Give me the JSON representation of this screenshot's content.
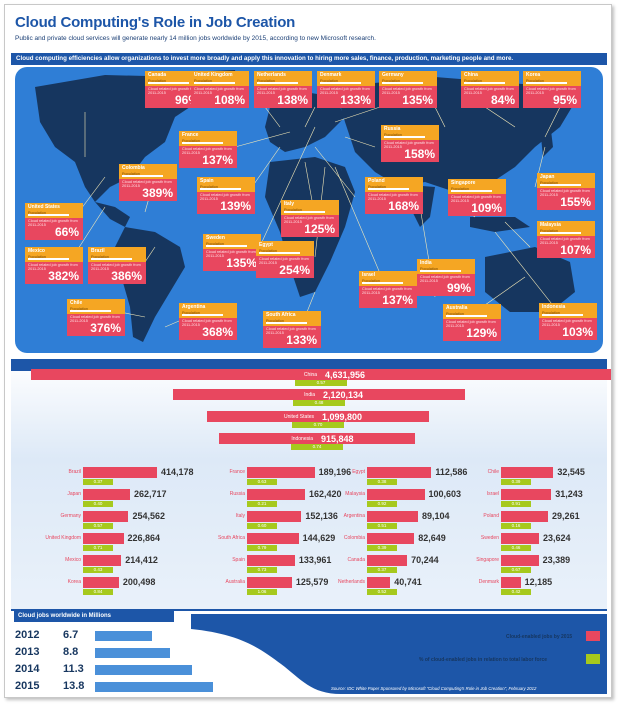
{
  "title": "Cloud Computing's Role in Job Creation",
  "subtitle": "Public and private cloud services will generate nearly 14 million jobs worldwide by 2015, according to new Microsoft research.",
  "banner": "Cloud computing efficiencies allow organizations to invest more broadly and apply this innovation to hiring more sales, finance, production, marketing people and more.",
  "card_line1": "Population",
  "card_line2": "Cloud related job growth from 2011-2015",
  "map_cards": [
    {
      "country": "Canada",
      "pct": "96%"
    },
    {
      "country": "United Kingdom",
      "pct": "108%"
    },
    {
      "country": "Netherlands",
      "pct": "138%"
    },
    {
      "country": "Denmark",
      "pct": "133%"
    },
    {
      "country": "Germany",
      "pct": "135%"
    },
    {
      "country": "China",
      "pct": "84%"
    },
    {
      "country": "Korea",
      "pct": "95%"
    },
    {
      "country": "France",
      "pct": "137%"
    },
    {
      "country": "Russia",
      "pct": "158%"
    },
    {
      "country": "Colombia",
      "pct": "389%"
    },
    {
      "country": "Spain",
      "pct": "139%"
    },
    {
      "country": "Poland",
      "pct": "168%"
    },
    {
      "country": "Singapore",
      "pct": "109%"
    },
    {
      "country": "Japan",
      "pct": "155%"
    },
    {
      "country": "United States",
      "pct": "66%"
    },
    {
      "country": "Italy",
      "pct": "125%"
    },
    {
      "country": "Malaysia",
      "pct": "107%"
    },
    {
      "country": "Mexico",
      "pct": "382%"
    },
    {
      "country": "Brazil",
      "pct": "386%"
    },
    {
      "country": "Sweden",
      "pct": "135%"
    },
    {
      "country": "Egypt",
      "pct": "254%"
    },
    {
      "country": "India",
      "pct": "99%"
    },
    {
      "country": "Israel",
      "pct": "137%"
    },
    {
      "country": "Chile",
      "pct": "376%"
    },
    {
      "country": "Argentina",
      "pct": "368%"
    },
    {
      "country": "South Africa",
      "pct": "133%"
    },
    {
      "country": "Australia",
      "pct": "129%"
    },
    {
      "country": "Indonesia",
      "pct": "103%"
    }
  ],
  "big_rows": [
    {
      "country": "China",
      "jobs": "4,631,956",
      "share": "0.57"
    },
    {
      "country": "India",
      "jobs": "2,120,134",
      "share": "0.48"
    },
    {
      "country": "United States",
      "jobs": "1,099,800",
      "share": "0.70"
    },
    {
      "country": "Indonesia",
      "jobs": "915,848",
      "share": "0.74"
    }
  ],
  "columns": [
    [
      {
        "country": "Brazil",
        "jobs": "414,178",
        "share": "0.37"
      },
      {
        "country": "Japan",
        "jobs": "262,717",
        "share": "0.40"
      },
      {
        "country": "Germany",
        "jobs": "254,562",
        "share": "0.57"
      },
      {
        "country": "United Kingdom",
        "jobs": "226,864",
        "share": "0.71"
      },
      {
        "country": "Mexico",
        "jobs": "214,412",
        "share": "0.43"
      },
      {
        "country": "Korea",
        "jobs": "200,498",
        "share": "0.84"
      }
    ],
    [
      {
        "country": "France",
        "jobs": "189,196",
        "share": "0.63"
      },
      {
        "country": "Russia",
        "jobs": "162,420",
        "share": "0.21"
      },
      {
        "country": "Italy",
        "jobs": "152,136",
        "share": "0.60"
      },
      {
        "country": "South Africa",
        "jobs": "144,629",
        "share": "0.79"
      },
      {
        "country": "Spain",
        "jobs": "133,961",
        "share": "0.73"
      },
      {
        "country": "Australia",
        "jobs": "125,579",
        "share": "1.06"
      }
    ],
    [
      {
        "country": "Egypt",
        "jobs": "112,586",
        "share": "0.38"
      },
      {
        "country": "Malaysia",
        "jobs": "100,603",
        "share": "0.92"
      },
      {
        "country": "Argentina",
        "jobs": "89,104",
        "share": "0.51"
      },
      {
        "country": "Colombia",
        "jobs": "82,649",
        "share": "0.39"
      },
      {
        "country": "Canada",
        "jobs": "70,244",
        "share": "0.37"
      },
      {
        "country": "Netherlands",
        "jobs": "40,741",
        "share": "0.52"
      }
    ],
    [
      {
        "country": "Chile",
        "jobs": "32,545",
        "share": "0.39"
      },
      {
        "country": "Israel",
        "jobs": "31,243",
        "share": "0.91"
      },
      {
        "country": "Poland",
        "jobs": "29,261",
        "share": "0.16"
      },
      {
        "country": "Sweden",
        "jobs": "23,624",
        "share": "0.46"
      },
      {
        "country": "Singapore",
        "jobs": "23,389",
        "share": "0.67"
      },
      {
        "country": "Denmark",
        "jobs": "12,185",
        "share": "0.42"
      }
    ]
  ],
  "jobs_header": "Cloud jobs worldwide in Millions",
  "jobs_by_year": [
    {
      "year": "2012",
      "value": "6.7",
      "num": 6.7
    },
    {
      "year": "2013",
      "value": "8.8",
      "num": 8.8
    },
    {
      "year": "2014",
      "value": "11.3",
      "num": 11.3
    },
    {
      "year": "2015",
      "value": "13.8",
      "num": 13.8
    }
  ],
  "legend_pink": "Cloud-enabled jobs by 2015",
  "legend_green": "% of cloud-enabled jobs in relation to total labor force",
  "source": "Source: IDC White Paper Sponsored by Microsoft \"Cloud Computing's Role in Job Creation\", February 2012",
  "colors": {
    "blue": "#1d56a8",
    "pink": "#e8475f",
    "green": "#a6c91d",
    "orange": "#f5a623"
  }
}
